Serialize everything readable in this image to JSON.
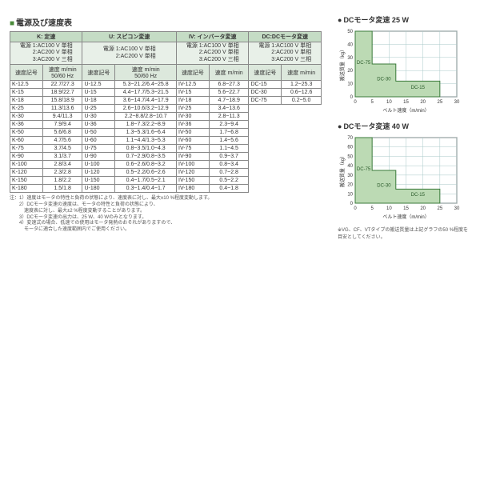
{
  "title": "電源及び速度表",
  "groups": {
    "k": {
      "name": "K: 定速",
      "power": [
        "1:AC100 V 単相",
        "2:AC200 V 単相",
        "3:AC200 V 三相"
      ]
    },
    "u": {
      "name": "U: スピコン変速",
      "power": [
        "1:AC100 V 単相",
        "2:AC200 V 単相"
      ]
    },
    "iv": {
      "name": "IV: インバータ変速",
      "power": [
        "1:AC100 V 単相",
        "2:AC200 V 単相",
        "3:AC200 V 三相"
      ]
    },
    "dc": {
      "name": "DC:DCモータ変速",
      "power": [
        "1:AC100 V 単相",
        "2:AC200 V 単相",
        "3:AC200 V 三相"
      ]
    }
  },
  "sub_headers": {
    "code": "速度記号",
    "k": "速度 m/min\n50/60 Hz",
    "u": "速度 m/min\n50/60 Hz",
    "iv": "速度 m/min",
    "dc": "速度 m/min"
  },
  "rows_k": [
    {
      "c": "K-12.5",
      "v": "22.7/27.3"
    },
    {
      "c": "K-15",
      "v": "18.9/22.7"
    },
    {
      "c": "K-18",
      "v": "15.8/18.9"
    },
    {
      "c": "K-25",
      "v": "11.3/13.6"
    },
    {
      "c": "K-30",
      "v": "9.4/11.3"
    },
    {
      "c": "K-36",
      "v": "7.9/9.4"
    },
    {
      "c": "K-50",
      "v": "5.6/6.8"
    },
    {
      "c": "K-60",
      "v": "4.7/5.6"
    },
    {
      "c": "K-75",
      "v": "3.7/4.5"
    },
    {
      "c": "K-90",
      "v": "3.1/3.7"
    },
    {
      "c": "K-100",
      "v": "2.8/3.4"
    },
    {
      "c": "K-120",
      "v": "2.3/2.8"
    },
    {
      "c": "K-150",
      "v": "1.8/2.2"
    },
    {
      "c": "K-180",
      "v": "1.5/1.8"
    }
  ],
  "rows_u": [
    {
      "c": "U-12.5",
      "v": "5.3~21.2/6.4~25.8"
    },
    {
      "c": "U-15",
      "v": "4.4~17.7/5.3~21.5"
    },
    {
      "c": "U-18",
      "v": "3.6~14.7/4.4~17.9"
    },
    {
      "c": "U-25",
      "v": "2.6~10.6/3.2~12.9"
    },
    {
      "c": "U-30",
      "v": "2.2~8.8/2.8~10.7"
    },
    {
      "c": "U-36",
      "v": "1.8~7.3/2.2~8.9"
    },
    {
      "c": "U-50",
      "v": "1.3~5.3/1.6~6.4"
    },
    {
      "c": "U-60",
      "v": "1.1~4.4/1.3~5.3"
    },
    {
      "c": "U-75",
      "v": "0.8~3.5/1.0~4.3"
    },
    {
      "c": "U-90",
      "v": "0.7~2.9/0.8~3.5"
    },
    {
      "c": "U-100",
      "v": "0.6~2.6/0.8~3.2"
    },
    {
      "c": "U-120",
      "v": "0.5~2.2/0.6~2.6"
    },
    {
      "c": "U-150",
      "v": "0.4~1.7/0.5~2.1"
    },
    {
      "c": "U-180",
      "v": "0.3~1.4/0.4~1.7"
    }
  ],
  "rows_iv": [
    {
      "c": "IV-12.5",
      "v": "6.8~27.3"
    },
    {
      "c": "IV-15",
      "v": "5.6~22.7"
    },
    {
      "c": "IV-18",
      "v": "4.7~18.9"
    },
    {
      "c": "IV-25",
      "v": "3.4~13.6"
    },
    {
      "c": "IV-30",
      "v": "2.8~11.3"
    },
    {
      "c": "IV-36",
      "v": "2.3~9.4"
    },
    {
      "c": "IV-50",
      "v": "1.7~6.8"
    },
    {
      "c": "IV-60",
      "v": "1.4~5.6"
    },
    {
      "c": "IV-75",
      "v": "1.1~4.5"
    },
    {
      "c": "IV-90",
      "v": "0.9~3.7"
    },
    {
      "c": "IV-100",
      "v": "0.8~3.4"
    },
    {
      "c": "IV-120",
      "v": "0.7~2.8"
    },
    {
      "c": "IV-150",
      "v": "0.5~2.2"
    },
    {
      "c": "IV-180",
      "v": "0.4~1.8"
    }
  ],
  "rows_dc": [
    {
      "c": "DC-15",
      "v": "1.2~25.3"
    },
    {
      "c": "DC-30",
      "v": "0.6~12.6"
    },
    {
      "c": "DC-75",
      "v": "0.2~5.0"
    }
  ],
  "notes": [
    "注：1）速度はモータの特性と負荷の状態により、速度表に対し、最大±10 %程度変動します。",
    "　　2）DCモータ変速の速度は、モータの特性と負荷の状態により、",
    "　　　速度表に対し、最大±2 %程度変動することがあります。",
    "　　3）DCモータ変速の出力は、25 W、40 Wのみとなります。",
    "　　4）変速式の場合、低速での使用はモータ発熱のおそれがありますので、",
    "　　　モータに適合した速度範囲内でご使用ください。"
  ],
  "side_note": "※VG、CF、VTタイプの搬送質量は上記グラフの50 %程度を目安としてください。",
  "charts": {
    "c25": {
      "title": "DCモータ変速  25 W",
      "xlim": [
        0,
        30
      ],
      "ylim": [
        0,
        50
      ],
      "xticks": [
        0,
        5,
        10,
        15,
        20,
        25,
        30
      ],
      "yticks": [
        0,
        10,
        20,
        30,
        40,
        50
      ],
      "xlabel": "ベルト速度（m/min）",
      "ylabel": "搬送質量（kg）",
      "bg": "#ffffff",
      "grid": "#a8c8c8",
      "fill": "#bcdab4",
      "stroke": "#3a7a3a",
      "regions": [
        {
          "label": "DC-75",
          "x": [
            0,
            5
          ],
          "ymax": 50
        },
        {
          "label": "DC-30",
          "x": [
            5,
            12
          ],
          "ymax": 25
        },
        {
          "label": "DC-15",
          "x": [
            12,
            25
          ],
          "ymax": 12
        }
      ]
    },
    "c40": {
      "title": "DCモータ変速  40 W",
      "xlim": [
        0,
        30
      ],
      "ylim": [
        0,
        70
      ],
      "xticks": [
        0,
        5,
        10,
        15,
        20,
        25,
        30
      ],
      "yticks": [
        0,
        10,
        20,
        30,
        40,
        50,
        60,
        70
      ],
      "xlabel": "ベルト速度（m/min）",
      "ylabel": "搬送質量（kg）",
      "bg": "#ffffff",
      "grid": "#a8c8c8",
      "fill": "#bcdab4",
      "stroke": "#3a7a3a",
      "regions": [
        {
          "label": "DC-75",
          "x": [
            0,
            5
          ],
          "ymax": 70
        },
        {
          "label": "DC-30",
          "x": [
            5,
            12
          ],
          "ymax": 35
        },
        {
          "label": "DC-15",
          "x": [
            12,
            25
          ],
          "ymax": 15
        }
      ]
    }
  }
}
